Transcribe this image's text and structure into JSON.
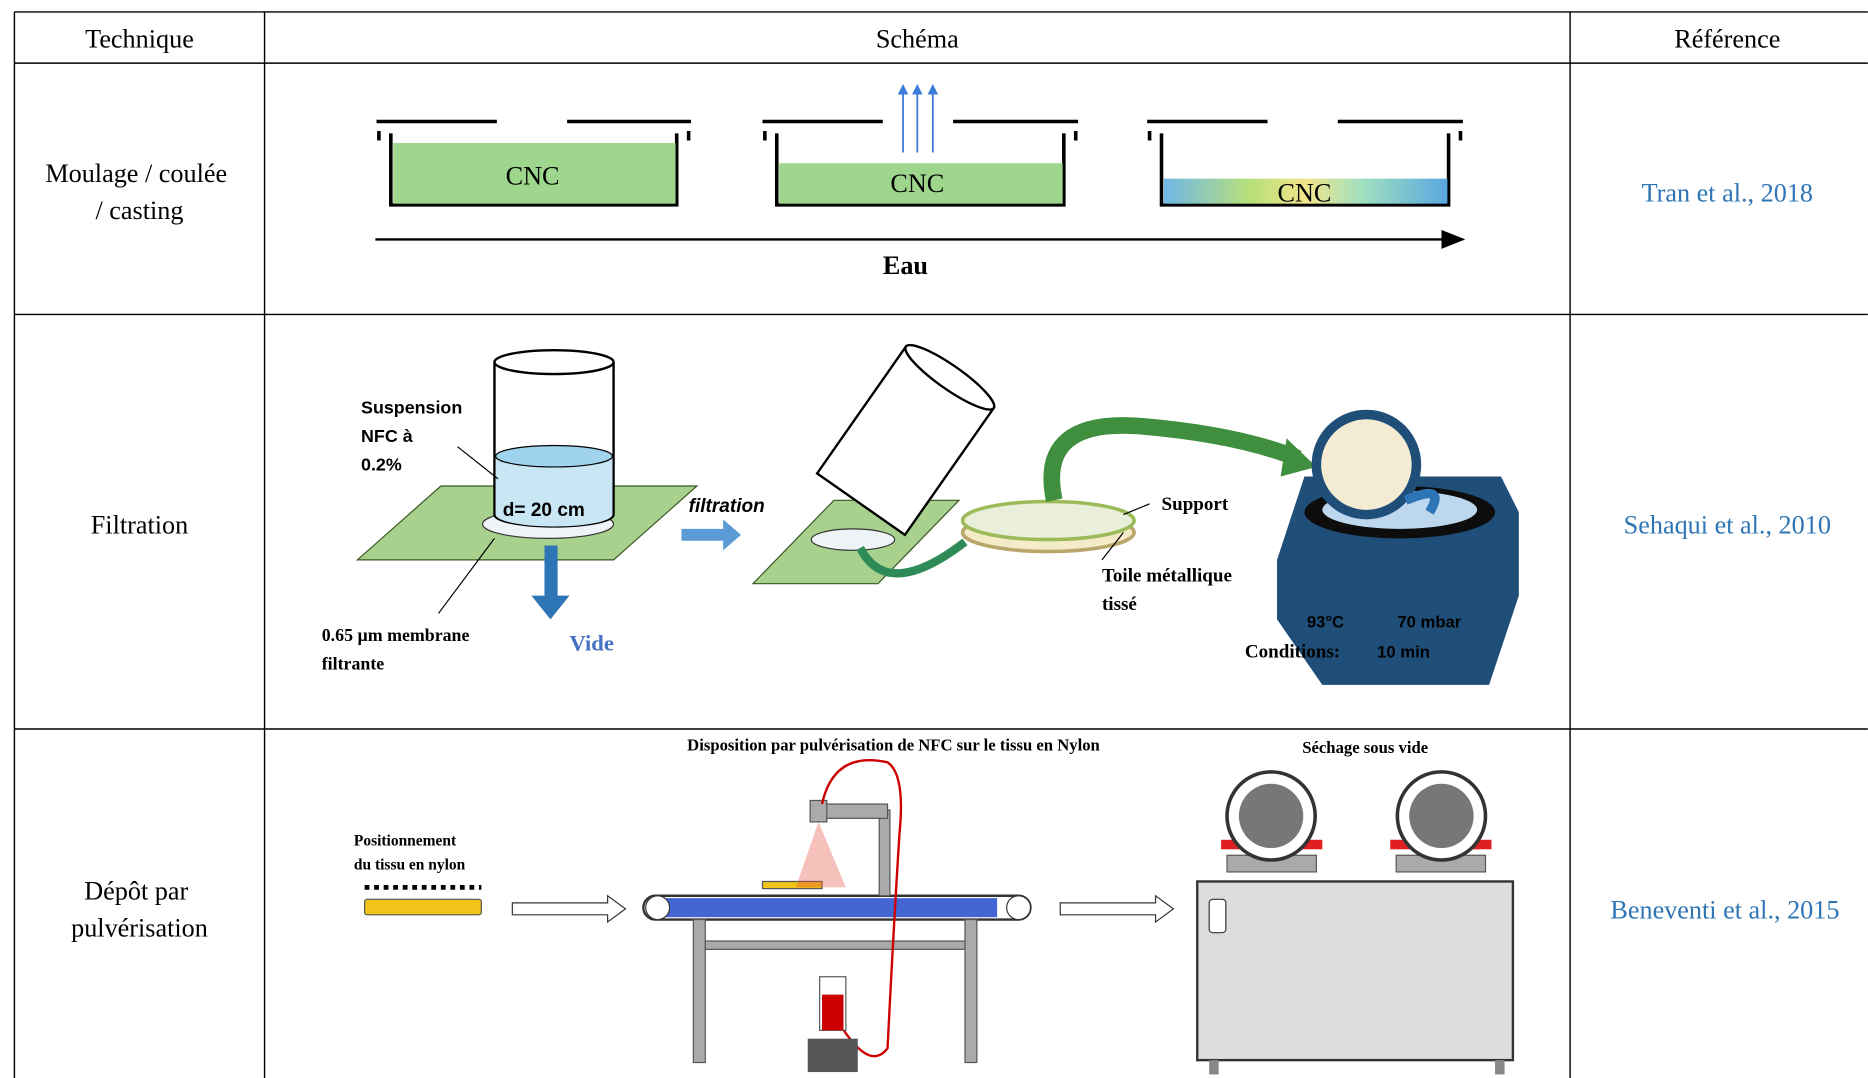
{
  "table": {
    "header": [
      "Technique",
      "Schéma",
      "Référence"
    ],
    "rows": [
      {
        "technique": [
          "Moulage / coulée",
          "/ casting"
        ],
        "reference": "Tran et al., 2018",
        "schema": {
          "labels": [
            "CNC",
            "CNC",
            "CNC"
          ],
          "axis": "Eau"
        }
      },
      {
        "technique": [
          "Filtration"
        ],
        "reference": "Sehaqui et al., 2010",
        "schema": {
          "suspension": [
            "Suspension",
            "NFC à",
            "0.2%"
          ],
          "diameter": "d= 20 cm",
          "membrane": [
            "0.65 µm membrane",
            "filtrante"
          ],
          "vacuum": "Vide",
          "arrow": "filtration",
          "support": "Support",
          "mesh": [
            "Toile métallique",
            "tissé"
          ],
          "temperature": "93°C",
          "pressure": "70 mbar",
          "conditions": "Conditions:",
          "time": "10 min"
        }
      },
      {
        "technique": [
          "Dépôt par",
          "pulvérisation"
        ],
        "reference": "Beneventi et al., 2015",
        "schema": {
          "spray": "Disposition par pulvérisation de NFC sur le tissu en Nylon",
          "drying": "Séchage sous vide",
          "positioning": [
            "Positionnement",
            "du tissu en nylon"
          ]
        }
      }
    ]
  }
}
